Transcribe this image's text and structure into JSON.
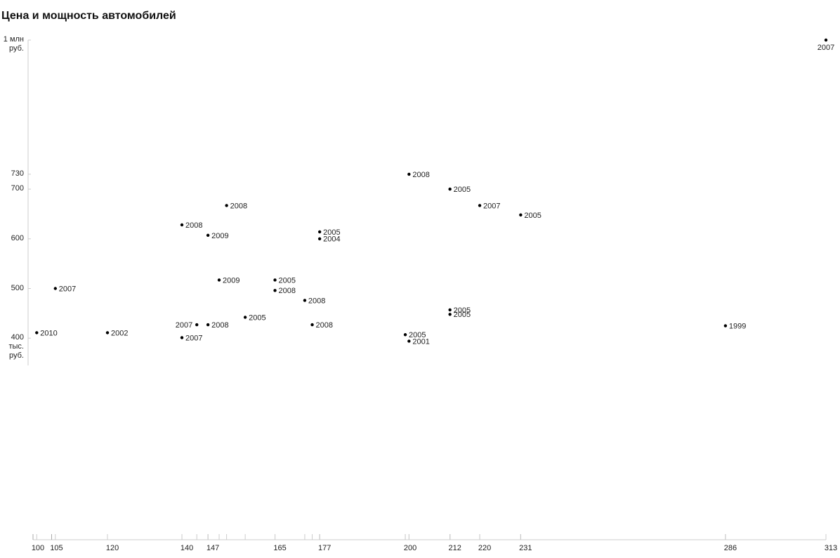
{
  "chart_data": {
    "type": "scatter",
    "title": "Цена и мощность автомобилей",
    "x": [
      101,
      106,
      120,
      140,
      147,
      152,
      144,
      147,
      140,
      150,
      157,
      165,
      165,
      173,
      175,
      177,
      177,
      201,
      212,
      220,
      231,
      212,
      212,
      200,
      201,
      286,
      313
    ],
    "values": [
      411,
      500,
      411,
      628,
      607,
      667,
      427,
      427,
      401,
      517,
      442,
      517,
      496,
      476,
      427,
      614,
      600,
      730,
      700,
      667,
      648,
      457,
      448,
      407,
      394,
      425,
      1000
    ],
    "point_labels": [
      "2010",
      "2007",
      "2002",
      "2008",
      "2009",
      "2008",
      "2007",
      "2008",
      "2007",
      "2009",
      "2005",
      "2005",
      "2008",
      "2008",
      "2008",
      "2005",
      "2004",
      "2008",
      "2005",
      "2007",
      "2005",
      "2005",
      "2005",
      "2005",
      "2001",
      "1999",
      "2007"
    ],
    "color": "#000000",
    "xlim": [
      100,
      313
    ],
    "xticks": [
      100,
      105,
      120,
      140,
      147,
      165,
      177,
      200,
      212,
      220,
      231,
      286,
      313
    ],
    "ylim": [
      0,
      1000
    ],
    "yticks": [
      {
        "value": 400,
        "label": "400 тыс. руб."
      },
      500,
      600,
      700,
      730,
      {
        "value": 1000,
        "label": "1 млн руб."
      }
    ]
  }
}
